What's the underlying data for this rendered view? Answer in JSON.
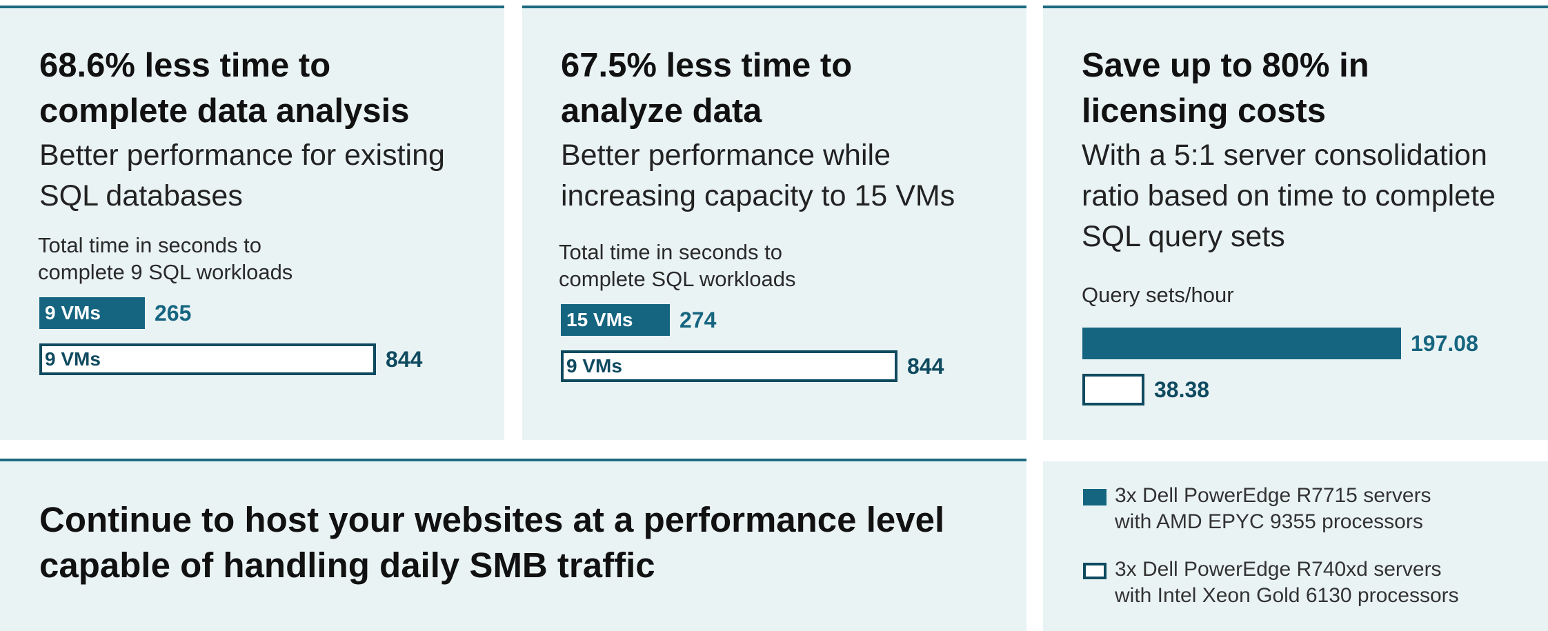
{
  "panels": [
    {
      "headline": [
        "68.6% less time to",
        "complete data analysis"
      ],
      "subtitle": [
        "Better performance for existing",
        "SQL databases"
      ],
      "chart_caption": [
        "Total time in seconds to",
        "complete 9 SQL workloads"
      ]
    },
    {
      "headline": [
        "67.5% less time to",
        "analyze data"
      ],
      "subtitle": [
        "Better performance while",
        "increasing capacity to 15 VMs"
      ],
      "chart_caption": [
        "Total time in seconds to",
        "complete SQL workloads"
      ]
    },
    {
      "headline": [
        "Save up to 80% in",
        "licensing costs"
      ],
      "subtitle": [
        "With a 5:1 server consolidation",
        "ratio based on time to complete",
        "SQL query sets"
      ],
      "chart_caption": [
        "Query sets/hour"
      ]
    }
  ],
  "bottom": {
    "headline": [
      "Continue to host your websites at a performance level",
      "capable of handling daily SMB traffic"
    ]
  },
  "legend": [
    {
      "style": "solid",
      "lines": [
        "3x Dell PowerEdge R7715 servers",
        "with AMD EPYC 9355 processors"
      ]
    },
    {
      "style": "outline",
      "lines": [
        "3x Dell PowerEdge R740xd servers",
        "with Intel Xeon Gold 6130 processors"
      ]
    }
  ],
  "colors": {
    "accent": "#166580",
    "outline": "#0f4a5f",
    "panel_bg": "#eaf3f4"
  },
  "chart_data": [
    {
      "type": "bar",
      "orientation": "horizontal",
      "ylabel": "Total time in seconds to complete 9 SQL workloads",
      "bars": [
        {
          "label": "9 VMs",
          "value": 265,
          "display": "265",
          "series": "3x Dell PowerEdge R7715 servers with AMD EPYC 9355 processors",
          "style": "solid"
        },
        {
          "label": "9 VMs",
          "value": 844,
          "display": "844",
          "series": "3x Dell PowerEdge R740xd servers with Intel Xeon Gold 6130 processors",
          "style": "outline"
        }
      ],
      "xlim": [
        0,
        844
      ]
    },
    {
      "type": "bar",
      "orientation": "horizontal",
      "ylabel": "Total time in seconds to complete SQL workloads",
      "bars": [
        {
          "label": "15 VMs",
          "value": 274,
          "display": "274",
          "series": "3x Dell PowerEdge R7715 servers with AMD EPYC 9355 processors",
          "style": "solid"
        },
        {
          "label": "9 VMs",
          "value": 844,
          "display": "844",
          "series": "3x Dell PowerEdge R740xd servers with Intel Xeon Gold 6130 processors",
          "style": "outline"
        }
      ],
      "xlim": [
        0,
        844
      ]
    },
    {
      "type": "bar",
      "orientation": "horizontal",
      "ylabel": "Query sets/hour",
      "bars": [
        {
          "label": "",
          "value": 197.08,
          "display": "197.08",
          "series": "3x Dell PowerEdge R7715 servers with AMD EPYC 9355 processors",
          "style": "solid"
        },
        {
          "label": "",
          "value": 38.38,
          "display": "38.38",
          "series": "3x Dell PowerEdge R740xd servers with Intel Xeon Gold 6130 processors",
          "style": "outline"
        }
      ],
      "xlim": [
        0,
        197.08
      ]
    }
  ]
}
